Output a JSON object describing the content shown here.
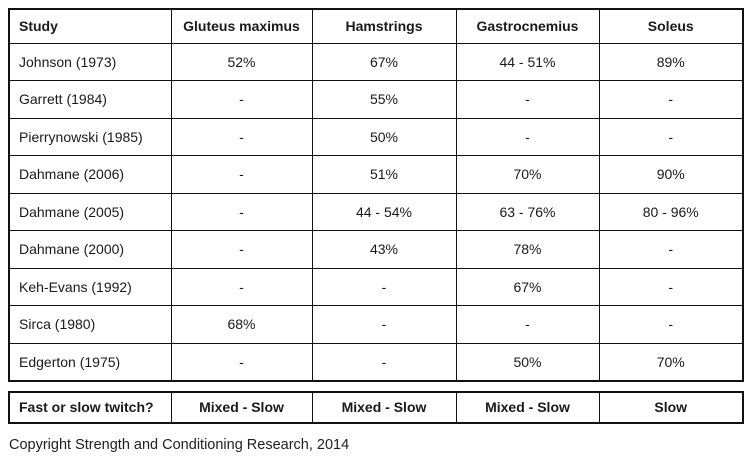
{
  "chart_data": {
    "type": "table",
    "columns": [
      "Study",
      "Gluteus maximus",
      "Hamstrings",
      "Gastrocnemius",
      "Soleus"
    ],
    "rows": [
      {
        "study": "Johnson (1973)",
        "values": [
          "52%",
          "67%",
          "44 - 51%",
          "89%"
        ]
      },
      {
        "study": "Garrett (1984)",
        "values": [
          "-",
          "55%",
          "-",
          "-"
        ]
      },
      {
        "study": "Pierrynowski (1985)",
        "values": [
          "-",
          "50%",
          "-",
          "-"
        ]
      },
      {
        "study": "Dahmane (2006)",
        "values": [
          "-",
          "51%",
          "70%",
          "90%"
        ]
      },
      {
        "study": "Dahmane (2005)",
        "values": [
          "-",
          "44 - 54%",
          "63 - 76%",
          "80 - 96%"
        ]
      },
      {
        "study": "Dahmane (2000)",
        "values": [
          "-",
          "43%",
          "78%",
          "-"
        ]
      },
      {
        "study": "Keh-Evans (1992)",
        "values": [
          "-",
          "-",
          "67%",
          "-"
        ]
      },
      {
        "study": "Sirca (1980)",
        "values": [
          "68%",
          "-",
          "-",
          "-"
        ]
      },
      {
        "study": "Edgerton (1975)",
        "values": [
          "-",
          "-",
          "50%",
          "70%"
        ]
      }
    ],
    "summary_row": {
      "label": "Fast or slow twitch?",
      "values": [
        "Mixed - Slow",
        "Mixed - Slow",
        "Mixed - Slow",
        "Slow"
      ]
    }
  },
  "footer": {
    "copyright": "Copyright Strength and Conditioning Research, 2014"
  }
}
